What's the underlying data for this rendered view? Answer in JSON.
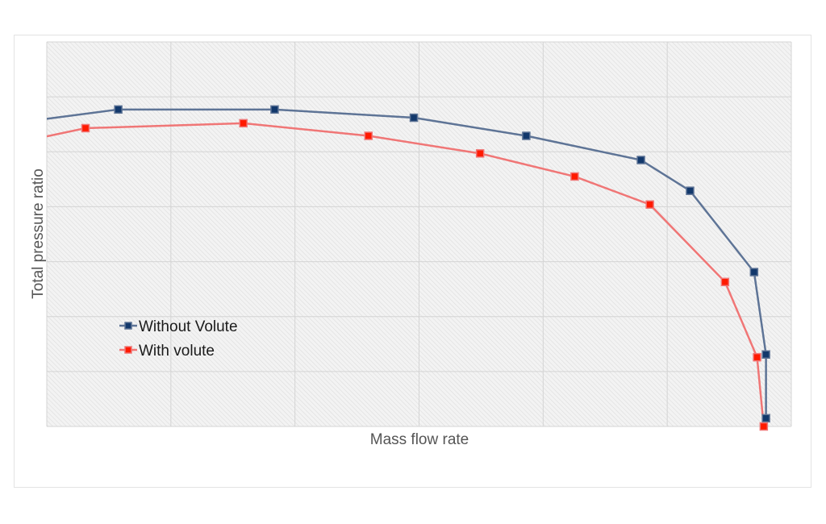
{
  "chart_data": {
    "type": "line",
    "xlabel": "Mass flow rate",
    "ylabel": "Total pressure ratio",
    "xlim": [
      0,
      100
    ],
    "ylim": [
      0,
      7
    ],
    "x_ticks_labeled": false,
    "y_ticks_labeled": false,
    "grid": true,
    "legend_position": "left-lower",
    "series": [
      {
        "name": "Without Volute",
        "color": "#5e7496",
        "marker_color": "#12386b",
        "marker": "square",
        "points": [
          [
            0,
            5.6
          ],
          [
            9.6,
            5.77
          ],
          [
            30.6,
            5.77
          ],
          [
            49.3,
            5.62
          ],
          [
            64.4,
            5.29
          ],
          [
            79.8,
            4.85
          ],
          [
            86.4,
            4.29
          ],
          [
            95.0,
            2.81
          ],
          [
            96.6,
            1.31
          ],
          [
            96.6,
            0.15
          ]
        ]
      },
      {
        "name": "With volute",
        "color": "#f07676",
        "marker_color": "#ff1a00",
        "marker": "square",
        "points": [
          [
            0,
            5.28
          ],
          [
            5.2,
            5.43
          ],
          [
            26.4,
            5.52
          ],
          [
            43.2,
            5.29
          ],
          [
            58.2,
            4.97
          ],
          [
            70.9,
            4.55
          ],
          [
            81.0,
            4.04
          ],
          [
            91.1,
            2.63
          ],
          [
            95.4,
            1.26
          ],
          [
            96.3,
            0.0
          ]
        ]
      }
    ]
  }
}
